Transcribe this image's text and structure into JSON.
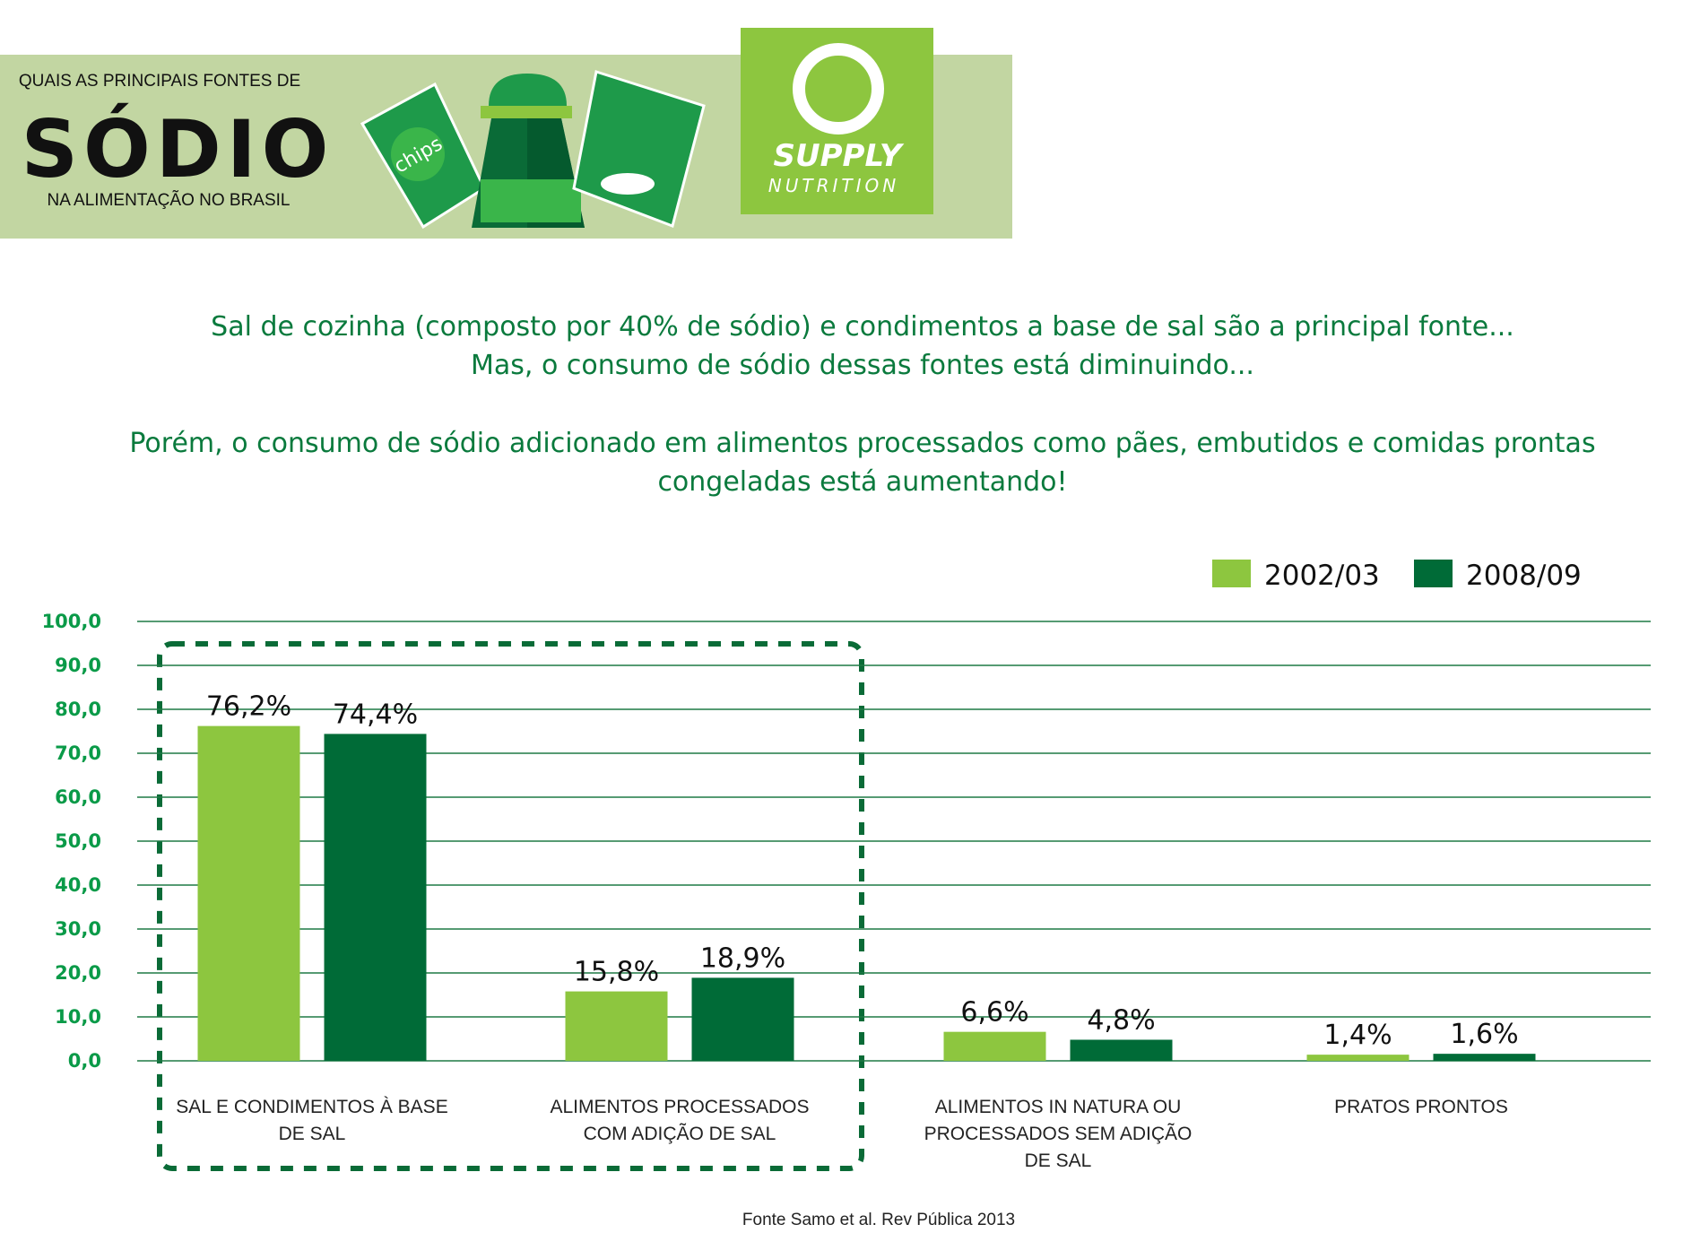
{
  "header": {
    "kicker": "QUAIS AS PRINCIPAIS FONTES DE",
    "title": "SÓDIO",
    "subtitle": "NA ALIMENTAÇÃO NO BRASIL",
    "chips": "chips",
    "logo_top": "SUPPLY",
    "logo_bottom": "NUTRITION"
  },
  "intro": [
    "Sal de cozinha (composto por 40% de sódio) e condimentos a base de sal são a principal fonte...",
    "Mas, o consumo de sódio dessas fontes está diminuindo...",
    "Porém, o consumo de sódio adicionado em alimentos processados como pães, embutidos e comidas prontas",
    "congeladas está aumentando!"
  ],
  "chart_data": {
    "type": "bar",
    "categories": [
      "SAL E CONDIMENTOS À BASE DE SAL",
      "ALIMENTOS PROCESSADOS COM ADIÇÃO DE SAL",
      "ALIMENTOS IN NATURA OU PROCESSADOS SEM ADIÇÃO DE SAL",
      "PRATOS PRONTOS"
    ],
    "series": [
      {
        "name": "2002/03",
        "color": "#8dc63f",
        "values": [
          76.2,
          15.8,
          6.6,
          1.4
        ],
        "value_labels": [
          "76,2%",
          "15,8%",
          "6,6%",
          "1,4%"
        ]
      },
      {
        "name": "2008/09",
        "color": "#006b37",
        "values": [
          74.4,
          18.9,
          4.8,
          1.6
        ],
        "value_labels": [
          "74,4%",
          "18,9%",
          "4,8%",
          "1,6%"
        ]
      }
    ],
    "ylim": [
      0,
      100
    ],
    "yticks": [
      {
        "value": 0,
        "label": "0,0"
      },
      {
        "value": 10,
        "label": "10,0"
      },
      {
        "value": 20,
        "label": "20,0"
      },
      {
        "value": 30,
        "label": "30,0"
      },
      {
        "value": 40,
        "label": "40,0"
      },
      {
        "value": 50,
        "label": "50,0"
      },
      {
        "value": 60,
        "label": "60,0"
      },
      {
        "value": 70,
        "label": "70,0"
      },
      {
        "value": 80,
        "label": "80,0"
      },
      {
        "value": 90,
        "label": "90,0"
      },
      {
        "value": 100,
        "label": "100,0"
      }
    ],
    "grid": true,
    "legend": "top-right",
    "source": "Fonte Samo et al. Rev Pública 2013"
  }
}
